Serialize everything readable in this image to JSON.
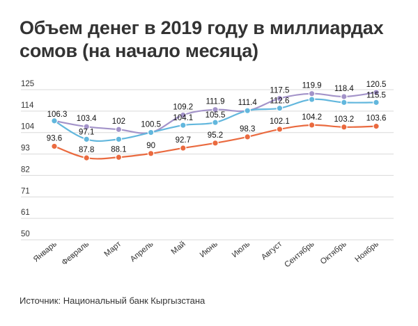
{
  "title": "Объем денег в 2019 году в миллиардах сомов (на начало месяца)",
  "source": "Источник: Национальный банк Кыргызстана",
  "colors": {
    "purple": "#a393c9",
    "blue": "#62b7dd",
    "orange": "#ea6a3f",
    "grid": "#d9d9d9",
    "text": "#333333"
  },
  "chart_data": {
    "type": "line",
    "categories": [
      "Январь",
      "Февраль",
      "Март",
      "Апрель",
      "Май",
      "Июнь",
      "Июль",
      "Август",
      "Сентябрь",
      "Октябрь",
      "Ноябрь"
    ],
    "yticks": [
      "125",
      "114",
      "104",
      "93",
      "82",
      "71",
      "61",
      "50"
    ],
    "ylim": [
      50,
      125
    ],
    "grid": true,
    "series": [
      {
        "color": "#a393c9",
        "values": [
          106.3,
          103.4,
          102,
          100.5,
          109.2,
          111.9,
          111.4,
          117.5,
          119.9,
          118.4,
          120.5
        ],
        "labels": [
          "106.3",
          "103.4",
          "102",
          "100.5",
          "109.2",
          "111.9",
          "111.4",
          "117.5",
          "119.9",
          "118.4",
          "120.5"
        ]
      },
      {
        "color": "#62b7dd",
        "values": [
          106.3,
          97.1,
          97.1,
          100.5,
          104.1,
          105.5,
          111.4,
          112.6,
          117.0,
          115.5,
          115.5
        ],
        "labels": [
          "",
          "97.1",
          "",
          "",
          "104.1",
          "105.5",
          "",
          "112.6",
          "",
          "",
          "115.5"
        ]
      },
      {
        "color": "#ea6a3f",
        "values": [
          93.6,
          87.8,
          88.1,
          90,
          92.7,
          95.2,
          98.3,
          102.1,
          104.2,
          103.2,
          103.6
        ],
        "labels": [
          "93.6",
          "87.8",
          "88.1",
          "90",
          "92.7",
          "95.2",
          "98.3",
          "102.1",
          "104.2",
          "103.2",
          "103.6"
        ]
      }
    ]
  }
}
